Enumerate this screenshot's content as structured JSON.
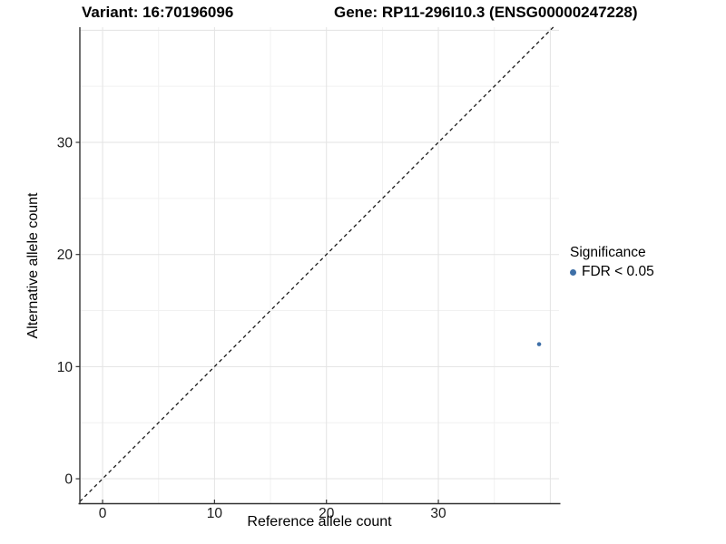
{
  "titles": {
    "variant": "Variant: 16:70196096",
    "gene": "Gene: RP11-296I10.3 (ENSG00000247228)"
  },
  "chart_data": {
    "type": "scatter",
    "title": "",
    "xlabel": "Reference allele count",
    "ylabel": "Alternative allele count",
    "xlim": [
      -2.03,
      40.78
    ],
    "ylim": [
      -2.22,
      40.27
    ],
    "x_ticks": [
      0,
      10,
      20,
      30
    ],
    "y_ticks": [
      0,
      10,
      20,
      30
    ],
    "grid_major": [
      0,
      10,
      20,
      30,
      40
    ],
    "grid_minor": [
      5,
      15,
      25,
      35
    ],
    "grid": true,
    "reference_line": {
      "type": "identity y=x",
      "style": "dashed"
    },
    "series": [
      {
        "name": "FDR < 0.05",
        "color": "#3e6fa7",
        "points": [
          {
            "x": 39,
            "y": 12
          }
        ]
      }
    ],
    "legend": {
      "position": "right",
      "title": "Significance",
      "items": [
        {
          "label": "FDR < 0.05",
          "color": "#3e6fa7",
          "marker": "circle"
        }
      ]
    }
  },
  "colors": {
    "background": "#ffffff",
    "axis_line": "#333333",
    "tick": "#333333",
    "grid_major": "#e3e3e3",
    "grid_minor": "#f1f1f1",
    "axis_text": "#1a1a1a",
    "reference_line": "#1a1a1a",
    "point": "#3e6fa7"
  }
}
